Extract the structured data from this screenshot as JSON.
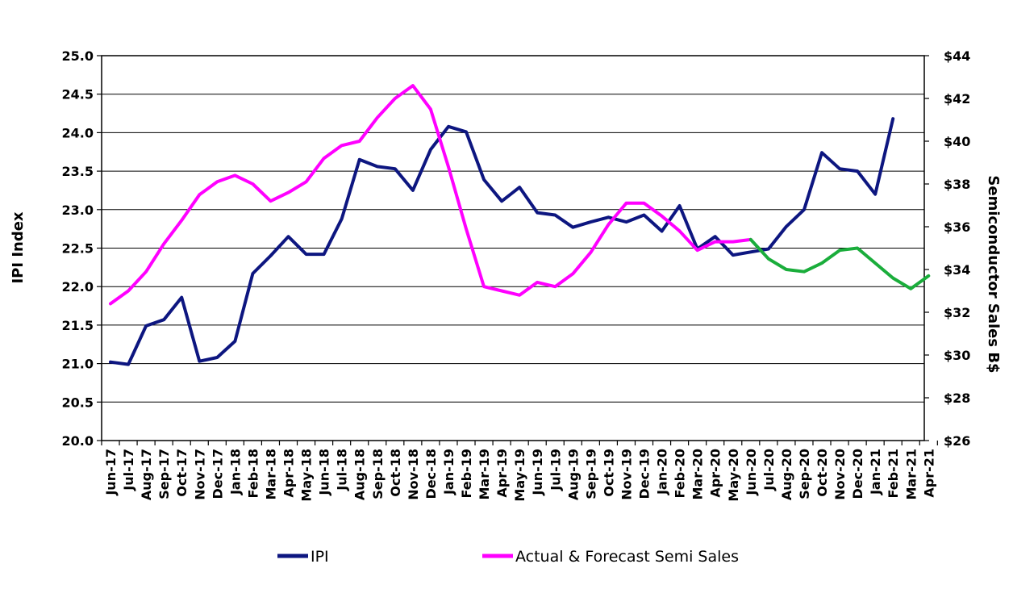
{
  "chart_data": {
    "type": "line",
    "title": "",
    "xlabel": "",
    "ylabel": "IPI Index",
    "y2label": "Semiconductor Sales B$",
    "ylim": [
      20.0,
      25.0
    ],
    "y2lim": [
      26,
      44
    ],
    "grid": true,
    "legend_position": "bottom",
    "x": [
      "Jun-17",
      "Jul-17",
      "Aug-17",
      "Sep-17",
      "Oct-17",
      "Nov-17",
      "Dec-17",
      "Jan-18",
      "Feb-18",
      "Mar-18",
      "Apr-18",
      "May-18",
      "Jun-18",
      "Jul-18",
      "Aug-18",
      "Sep-18",
      "Oct-18",
      "Nov-18",
      "Dec-18",
      "Jan-19",
      "Feb-19",
      "Mar-19",
      "Apr-19",
      "May-19",
      "Jun-19",
      "Jul-19",
      "Aug-19",
      "Sep-19",
      "Oct-19",
      "Nov-19",
      "Dec-19",
      "Jan-20",
      "Feb-20",
      "Mar-20",
      "Apr-20",
      "May-20",
      "Jun-20",
      "Jul-20",
      "Aug-20",
      "Sep-20",
      "Oct-20",
      "Nov-20",
      "Dec-20",
      "Jan-21",
      "Feb-21",
      "Mar-21",
      "Apr-21"
    ],
    "y_ticks": [
      "20.0",
      "20.5",
      "21.0",
      "21.5",
      "22.0",
      "22.5",
      "23.0",
      "23.5",
      "24.0",
      "24.5",
      "25.0"
    ],
    "y2_ticks": [
      "$26",
      "$28",
      "$30",
      "$32",
      "$34",
      "$36",
      "$38",
      "$40",
      "$42",
      "$44"
    ],
    "series": [
      {
        "name": "IPI",
        "axis": "left",
        "color": "#0d1680",
        "values": [
          21.02,
          20.99,
          21.49,
          21.57,
          21.86,
          21.03,
          21.08,
          21.29,
          22.17,
          22.4,
          22.65,
          22.42,
          22.42,
          22.88,
          23.65,
          23.56,
          23.53,
          23.25,
          23.78,
          24.08,
          24.01,
          23.39,
          23.11,
          23.29,
          22.96,
          22.93,
          22.77,
          22.84,
          22.9,
          22.84,
          22.93,
          22.72,
          23.05,
          22.49,
          22.65,
          22.41,
          22.45,
          22.49,
          22.78,
          23.0,
          23.74,
          23.53,
          23.5,
          23.2,
          24.18,
          null,
          null
        ]
      },
      {
        "name": "Actual & Forecast Semi Sales",
        "axis": "right",
        "color": "#ff00ff",
        "values": [
          32.4,
          33.0,
          33.9,
          35.2,
          36.3,
          37.5,
          38.1,
          38.4,
          38.0,
          37.2,
          37.6,
          38.1,
          39.2,
          39.8,
          40.0,
          41.1,
          42.0,
          42.6,
          41.5,
          38.8,
          35.9,
          33.2,
          33.0,
          32.8,
          33.4,
          33.2,
          33.8,
          34.8,
          36.1,
          37.1,
          37.1,
          36.5,
          35.8,
          34.9,
          35.3,
          35.3,
          35.4,
          null,
          null,
          null,
          null,
          null,
          null,
          null,
          null,
          null,
          null
        ]
      },
      {
        "name": "",
        "axis": "right",
        "color": "#1aad3b",
        "values": [
          null,
          null,
          null,
          null,
          null,
          null,
          null,
          null,
          null,
          null,
          null,
          null,
          null,
          null,
          null,
          null,
          null,
          null,
          null,
          null,
          null,
          null,
          null,
          null,
          null,
          null,
          null,
          null,
          null,
          null,
          null,
          null,
          null,
          null,
          null,
          null,
          35.4,
          34.5,
          34.0,
          33.9,
          34.3,
          34.9,
          35.0,
          34.3,
          33.6,
          33.1,
          33.7
        ]
      }
    ],
    "legend": [
      {
        "label": "IPI",
        "color": "#0d1680"
      },
      {
        "label": "Actual & Forecast Semi Sales",
        "color": "#ff00ff"
      }
    ]
  }
}
